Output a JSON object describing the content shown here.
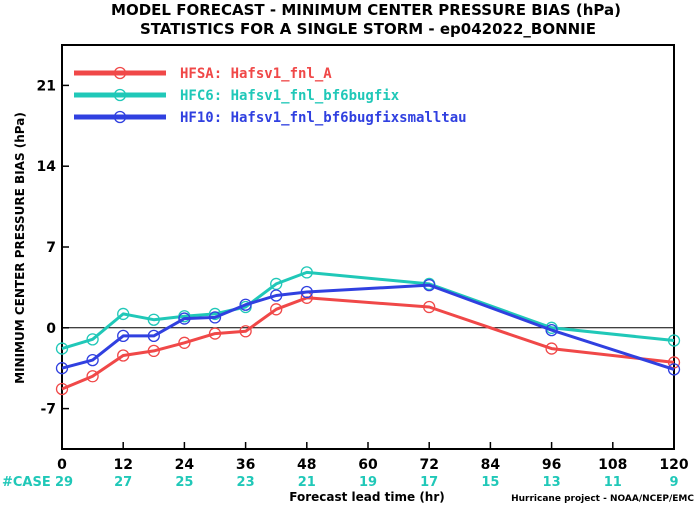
{
  "chart_data": {
    "type": "line",
    "title": "MODEL FORECAST - MINIMUM CENTER PRESSURE BIAS (hPa)",
    "subtitle": "STATISTICS FOR A SINGLE STORM - ep042022_BONNIE",
    "xlabel": "Forecast lead time (hr)",
    "ylabel": "MINIMUM CENTER PRESSURE BIAS (hPa)",
    "xlim": [
      0,
      120
    ],
    "ylim": [
      -10.5,
      24.5
    ],
    "xticks": [
      0,
      12,
      24,
      36,
      48,
      60,
      72,
      84,
      96,
      108,
      120
    ],
    "yticks": [
      -7,
      0,
      7,
      14,
      21
    ],
    "zero_line": true,
    "legend_position": "top-left",
    "series": [
      {
        "name": "HFSA: Hafsv1_fnl_A",
        "color": "#f04848",
        "points": [
          [
            0,
            -5.3
          ],
          [
            6,
            -4.2
          ],
          [
            12,
            -2.4
          ],
          [
            18,
            -2.0
          ],
          [
            24,
            -1.3
          ],
          [
            30,
            -0.5
          ],
          [
            36,
            -0.3
          ],
          [
            42,
            1.6
          ],
          [
            48,
            2.6
          ],
          [
            72,
            1.8
          ],
          [
            96,
            -1.8
          ],
          [
            120,
            -3.0
          ]
        ]
      },
      {
        "name": "HFC6: Hafsv1_fnl_bf6bugfix",
        "color": "#20c8b8",
        "points": [
          [
            0,
            -1.8
          ],
          [
            6,
            -1.0
          ],
          [
            12,
            1.2
          ],
          [
            18,
            0.7
          ],
          [
            24,
            1.0
          ],
          [
            30,
            1.2
          ],
          [
            36,
            1.8
          ],
          [
            42,
            3.8
          ],
          [
            48,
            4.8
          ],
          [
            72,
            3.8
          ],
          [
            96,
            0.0
          ],
          [
            120,
            -1.1
          ]
        ]
      },
      {
        "name": "HF10: Hafsv1_fnl_bf6bugfixsmalltau",
        "color": "#3040e0",
        "points": [
          [
            0,
            -3.5
          ],
          [
            6,
            -2.8
          ],
          [
            12,
            -0.7
          ],
          [
            18,
            -0.7
          ],
          [
            24,
            0.8
          ],
          [
            30,
            0.9
          ],
          [
            36,
            2.0
          ],
          [
            42,
            2.8
          ],
          [
            48,
            3.1
          ],
          [
            72,
            3.7
          ],
          [
            96,
            -0.2
          ],
          [
            120,
            -3.6
          ]
        ]
      }
    ],
    "case_counts": {
      "label": "#CASE",
      "color": "#20c8b8",
      "values": [
        {
          "x": 0,
          "n": "29"
        },
        {
          "x": 12,
          "n": "27"
        },
        {
          "x": 24,
          "n": "25"
        },
        {
          "x": 36,
          "n": "23"
        },
        {
          "x": 48,
          "n": "21"
        },
        {
          "x": 60,
          "n": "19"
        },
        {
          "x": 72,
          "n": "17"
        },
        {
          "x": 84,
          "n": "15"
        },
        {
          "x": 96,
          "n": "13"
        },
        {
          "x": 108,
          "n": "11"
        },
        {
          "x": 120,
          "n": "9"
        }
      ]
    },
    "credit": "Hurricane project - NOAA/NCEP/EMC"
  }
}
